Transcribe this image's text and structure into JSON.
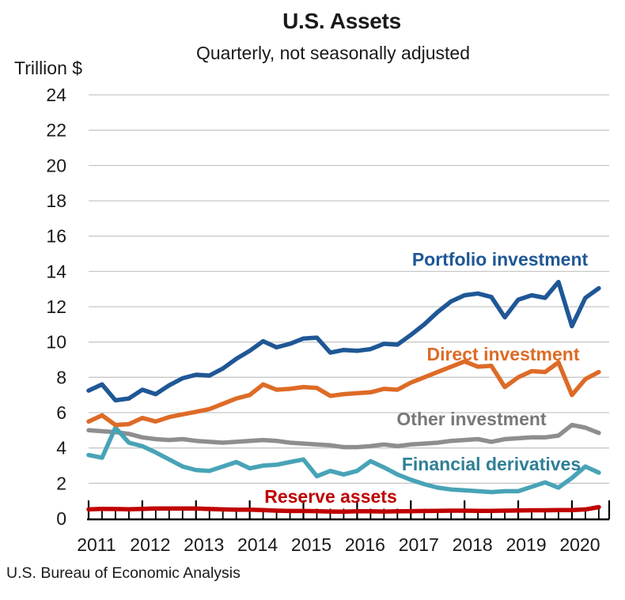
{
  "page": {
    "background": "#FFFFFF"
  },
  "chart_data": {
    "type": "line",
    "title": "U.S. Assets",
    "subtitle": "Quarterly, not seasonally adjusted",
    "unit_label": "Trillion $",
    "source": "U.S. Bureau of Economic Analysis",
    "legend_style": "inline-labels",
    "grid": true,
    "x": {
      "frequency": "quarterly",
      "start": "2011Q1",
      "end": "2020Q3",
      "year_labels": [
        "2011",
        "2012",
        "2013",
        "2014",
        "2015",
        "2016",
        "2017",
        "2018",
        "2019",
        "2020"
      ]
    },
    "y": {
      "min": 0,
      "max": 24,
      "tick_step": 2,
      "tick_labels": [
        "0",
        "2",
        "4",
        "6",
        "8",
        "10",
        "12",
        "14",
        "16",
        "18",
        "20",
        "22",
        "24"
      ]
    },
    "colors": {
      "grid": "#C8C8C8",
      "axis": "#000000",
      "text": "#1A1A1A"
    },
    "series": [
      {
        "name": "Portfolio investment",
        "color": "#1F5796",
        "label_color": "#1F5796",
        "values": [
          7.25,
          7.6,
          6.7,
          6.8,
          7.3,
          7.05,
          7.55,
          7.95,
          8.15,
          8.1,
          8.5,
          9.05,
          9.5,
          10.05,
          9.7,
          9.9,
          10.2,
          10.25,
          9.4,
          9.55,
          9.5,
          9.6,
          9.9,
          9.85,
          10.4,
          11.0,
          11.7,
          12.3,
          12.65,
          12.75,
          12.55,
          11.4,
          12.4,
          12.65,
          12.5,
          13.4,
          10.9,
          12.5,
          13.05
        ]
      },
      {
        "name": "Direct investment",
        "color": "#DD6B27",
        "label_color": "#DD6B27",
        "values": [
          5.5,
          5.85,
          5.3,
          5.35,
          5.7,
          5.5,
          5.75,
          5.9,
          6.05,
          6.2,
          6.5,
          6.8,
          7.0,
          7.6,
          7.3,
          7.35,
          7.45,
          7.4,
          6.95,
          7.05,
          7.1,
          7.15,
          7.35,
          7.3,
          7.7,
          8.0,
          8.3,
          8.6,
          8.9,
          8.6,
          8.65,
          7.45,
          8.0,
          8.35,
          8.3,
          8.85,
          7.0,
          7.9,
          8.3
        ]
      },
      {
        "name": "Other investment",
        "color": "#8E8E8E",
        "label_color": "#787878",
        "values": [
          5.0,
          4.95,
          4.9,
          4.8,
          4.6,
          4.5,
          4.45,
          4.5,
          4.4,
          4.35,
          4.3,
          4.35,
          4.4,
          4.45,
          4.4,
          4.3,
          4.25,
          4.2,
          4.15,
          4.05,
          4.05,
          4.1,
          4.2,
          4.1,
          4.2,
          4.25,
          4.3,
          4.4,
          4.45,
          4.5,
          4.35,
          4.5,
          4.55,
          4.6,
          4.6,
          4.7,
          5.3,
          5.15,
          4.85
        ]
      },
      {
        "name": "Financial derivatives",
        "color": "#48A3B7",
        "label_color": "#2E7F95",
        "values": [
          3.6,
          3.45,
          5.15,
          4.3,
          4.1,
          3.75,
          3.35,
          2.95,
          2.75,
          2.7,
          2.95,
          3.2,
          2.85,
          3.0,
          3.05,
          3.2,
          3.35,
          2.4,
          2.7,
          2.5,
          2.7,
          3.25,
          2.9,
          2.5,
          2.2,
          1.95,
          1.75,
          1.65,
          1.6,
          1.55,
          1.5,
          1.55,
          1.55,
          1.8,
          2.05,
          1.75,
          2.3,
          2.95,
          2.6
        ]
      },
      {
        "name": "Reserve assets",
        "color": "#C00000",
        "label_color": "#C00000",
        "values": [
          0.52,
          0.55,
          0.54,
          0.53,
          0.55,
          0.57,
          0.57,
          0.57,
          0.57,
          0.54,
          0.52,
          0.5,
          0.5,
          0.48,
          0.45,
          0.43,
          0.43,
          0.42,
          0.4,
          0.39,
          0.41,
          0.41,
          0.4,
          0.41,
          0.42,
          0.43,
          0.44,
          0.45,
          0.45,
          0.44,
          0.44,
          0.45,
          0.46,
          0.47,
          0.47,
          0.48,
          0.48,
          0.52,
          0.65
        ]
      }
    ]
  }
}
